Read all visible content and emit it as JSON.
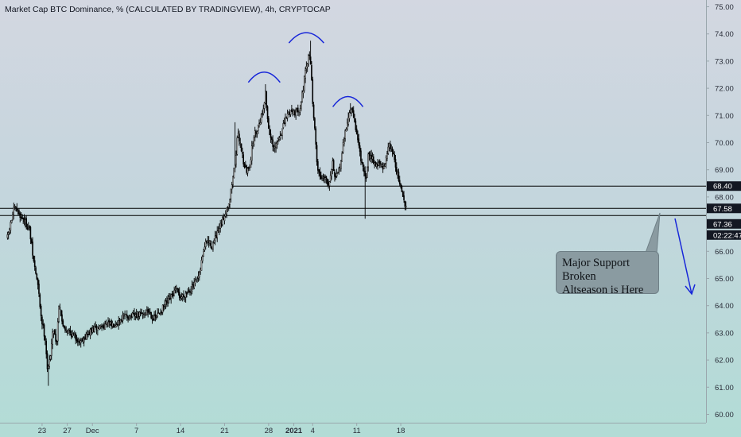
{
  "header": {
    "title": "Market Cap BTC Dominance, % (CALCULATED BY TRADINGVIEW), 4h, CRYPTOCAP"
  },
  "chart_data": {
    "type": "candlestick",
    "title": "Market Cap BTC Dominance, % (CALCULATED BY TRADINGVIEW), 4h, CRYPTOCAP",
    "ylim": [
      60,
      75
    ],
    "y_ticks": [
      "60.00",
      "61.00",
      "62.00",
      "63.00",
      "64.00",
      "65.00",
      "66.00",
      "67.00",
      "68.00",
      "69.00",
      "70.00",
      "71.00",
      "72.00",
      "73.00",
      "74.00",
      "75.00"
    ],
    "x_ticks": [
      {
        "label": "23",
        "day": 23
      },
      {
        "label": "27",
        "day": 27
      },
      {
        "label": "Dec",
        "day": 31
      },
      {
        "label": "7",
        "day": 38
      },
      {
        "label": "14",
        "day": 45
      },
      {
        "label": "21",
        "day": 52
      },
      {
        "label": "28",
        "day": 59
      },
      {
        "label": "2021",
        "day": 63,
        "bold": true
      },
      {
        "label": "4",
        "day": 66
      },
      {
        "label": "11",
        "day": 73
      },
      {
        "label": "18",
        "day": 80
      }
    ],
    "close_path": [
      [
        17.5,
        66.5
      ],
      [
        18.0,
        67.0
      ],
      [
        18.6,
        67.6
      ],
      [
        19.3,
        67.4
      ],
      [
        20.0,
        67.2
      ],
      [
        21.0,
        66.8
      ],
      [
        21.6,
        65.7
      ],
      [
        22.3,
        64.8
      ],
      [
        22.9,
        63.5
      ],
      [
        23.5,
        62.8
      ],
      [
        23.9,
        61.5
      ],
      [
        24.3,
        62.2
      ],
      [
        24.8,
        63.2
      ],
      [
        25.3,
        62.6
      ],
      [
        25.7,
        64.2
      ],
      [
        26.2,
        63.3
      ],
      [
        27.0,
        63.1
      ],
      [
        28.0,
        62.9
      ],
      [
        29.0,
        62.7
      ],
      [
        30.0,
        62.9
      ],
      [
        31.0,
        63.1
      ],
      [
        32.0,
        63.2
      ],
      [
        33.0,
        63.3
      ],
      [
        34.0,
        63.3
      ],
      [
        35.0,
        63.4
      ],
      [
        36.0,
        63.6
      ],
      [
        37.5,
        63.6
      ],
      [
        39.0,
        63.7
      ],
      [
        40.0,
        63.8
      ],
      [
        40.8,
        63.5
      ],
      [
        41.5,
        63.7
      ],
      [
        42.5,
        64.0
      ],
      [
        43.5,
        64.3
      ],
      [
        44.3,
        64.6
      ],
      [
        45.0,
        64.3
      ],
      [
        46.0,
        64.5
      ],
      [
        47.0,
        64.7
      ],
      [
        48.0,
        65.1
      ],
      [
        48.6,
        66.0
      ],
      [
        49.2,
        66.4
      ],
      [
        50.0,
        66.2
      ],
      [
        50.8,
        66.6
      ],
      [
        51.5,
        67.0
      ],
      [
        52.2,
        67.5
      ],
      [
        52.8,
        67.9
      ],
      [
        53.3,
        68.7
      ],
      [
        53.7,
        69.3
      ],
      [
        54.1,
        70.3
      ],
      [
        54.5,
        70.0
      ],
      [
        55.0,
        69.3
      ],
      [
        55.5,
        68.9
      ],
      [
        56.0,
        69.2
      ],
      [
        56.6,
        70.2
      ],
      [
        57.3,
        70.6
      ],
      [
        58.0,
        71.1
      ],
      [
        58.5,
        71.8
      ],
      [
        58.9,
        70.7
      ],
      [
        59.3,
        70.2
      ],
      [
        59.8,
        69.7
      ],
      [
        60.5,
        70.1
      ],
      [
        61.2,
        70.5
      ],
      [
        61.9,
        71.0
      ],
      [
        62.6,
        71.2
      ],
      [
        63.4,
        71.1
      ],
      [
        64.1,
        71.4
      ],
      [
        64.8,
        72.5
      ],
      [
        65.2,
        73.0
      ],
      [
        65.6,
        73.3
      ],
      [
        66.0,
        71.5
      ],
      [
        66.4,
        70.2
      ],
      [
        66.8,
        69.0
      ],
      [
        67.3,
        68.7
      ],
      [
        67.9,
        68.8
      ],
      [
        68.5,
        68.5
      ],
      [
        69.2,
        69.3
      ],
      [
        69.6,
        68.6
      ],
      [
        70.1,
        68.9
      ],
      [
        70.6,
        69.5
      ],
      [
        71.1,
        70.3
      ],
      [
        71.6,
        70.9
      ],
      [
        72.1,
        71.2
      ],
      [
        72.6,
        70.9
      ],
      [
        73.0,
        70.3
      ],
      [
        73.4,
        69.8
      ],
      [
        73.9,
        69.1
      ],
      [
        74.4,
        68.6
      ],
      [
        74.9,
        69.6
      ],
      [
        75.4,
        69.5
      ],
      [
        75.9,
        69.2
      ],
      [
        76.6,
        69.2
      ],
      [
        77.3,
        69.0
      ],
      [
        77.9,
        69.8
      ],
      [
        78.4,
        69.9
      ],
      [
        78.9,
        69.5
      ],
      [
        79.3,
        69.0
      ],
      [
        79.7,
        68.6
      ],
      [
        80.1,
        68.2
      ],
      [
        80.6,
        67.8
      ],
      [
        81.0,
        67.4
      ]
    ],
    "levels": [
      {
        "label": "68.40",
        "value": 68.4
      },
      {
        "label": "67.58",
        "value": 67.58
      },
      {
        "label": "67.36",
        "value": 67.36
      }
    ],
    "countdown_label": "02:22:47",
    "annotation": [
      "Major Support Broken",
      "Altseason is Here"
    ],
    "colors": {
      "candle": "#000000",
      "level_line": "#000000",
      "arc": "#1726d9",
      "arrow": "#1726d9",
      "callout_fill": "#8a9ba1",
      "label_bg": "#131722"
    }
  }
}
